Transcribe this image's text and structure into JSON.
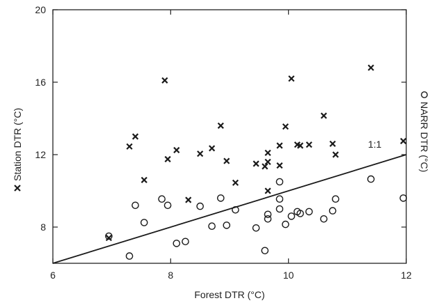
{
  "chart_data": {
    "type": "scatter",
    "xlabel": "Forest DTR (°C)",
    "ylabel": "Station DTR (°C)",
    "y2label": "NARR DTR (°C)",
    "xlim": [
      6,
      12
    ],
    "ylim": [
      6,
      20
    ],
    "xticks": [
      6,
      8,
      10,
      12
    ],
    "yticks": [
      8,
      12,
      16,
      20
    ],
    "grid": false,
    "colors": {
      "marks": "#1a1a1a"
    },
    "series": [
      {
        "name": "Station DTR (°C)",
        "marker": "x",
        "points": [
          [
            6.95,
            7.4
          ],
          [
            7.3,
            12.45
          ],
          [
            7.4,
            13.0
          ],
          [
            7.55,
            10.6
          ],
          [
            7.9,
            16.1
          ],
          [
            7.95,
            11.75
          ],
          [
            8.1,
            12.25
          ],
          [
            8.3,
            9.5
          ],
          [
            8.5,
            12.05
          ],
          [
            8.7,
            12.35
          ],
          [
            8.85,
            13.6
          ],
          [
            8.95,
            11.65
          ],
          [
            9.1,
            10.45
          ],
          [
            9.45,
            11.5
          ],
          [
            9.6,
            11.35
          ],
          [
            9.65,
            12.1
          ],
          [
            9.65,
            10.0
          ],
          [
            9.65,
            11.6
          ],
          [
            9.85,
            12.5
          ],
          [
            9.85,
            11.4
          ],
          [
            9.95,
            13.55
          ],
          [
            10.05,
            16.2
          ],
          [
            10.15,
            12.55
          ],
          [
            10.2,
            12.5
          ],
          [
            10.35,
            12.55
          ],
          [
            10.6,
            14.15
          ],
          [
            10.75,
            12.6
          ],
          [
            10.8,
            12.0
          ],
          [
            11.4,
            16.8
          ],
          [
            11.95,
            12.75
          ]
        ]
      },
      {
        "name": "NARR DTR (°C)",
        "marker": "circle",
        "points": [
          [
            6.95,
            7.5
          ],
          [
            7.3,
            6.4
          ],
          [
            7.4,
            9.2
          ],
          [
            7.55,
            8.25
          ],
          [
            7.85,
            9.55
          ],
          [
            7.95,
            9.2
          ],
          [
            8.1,
            7.1
          ],
          [
            8.25,
            7.2
          ],
          [
            8.5,
            9.15
          ],
          [
            8.7,
            8.05
          ],
          [
            8.85,
            9.6
          ],
          [
            8.95,
            8.1
          ],
          [
            9.1,
            8.95
          ],
          [
            9.45,
            7.95
          ],
          [
            9.6,
            6.7
          ],
          [
            9.65,
            8.45
          ],
          [
            9.65,
            8.7
          ],
          [
            9.85,
            10.5
          ],
          [
            9.85,
            9.55
          ],
          [
            9.85,
            9.0
          ],
          [
            9.95,
            8.15
          ],
          [
            10.05,
            8.6
          ],
          [
            10.15,
            8.85
          ],
          [
            10.2,
            8.75
          ],
          [
            10.35,
            8.85
          ],
          [
            10.6,
            8.45
          ],
          [
            10.75,
            8.9
          ],
          [
            10.8,
            9.55
          ],
          [
            11.4,
            10.65
          ],
          [
            11.95,
            9.6
          ]
        ]
      }
    ],
    "reference_line": {
      "label": "1:1",
      "from": [
        6,
        6
      ],
      "to": [
        12,
        12
      ]
    }
  }
}
